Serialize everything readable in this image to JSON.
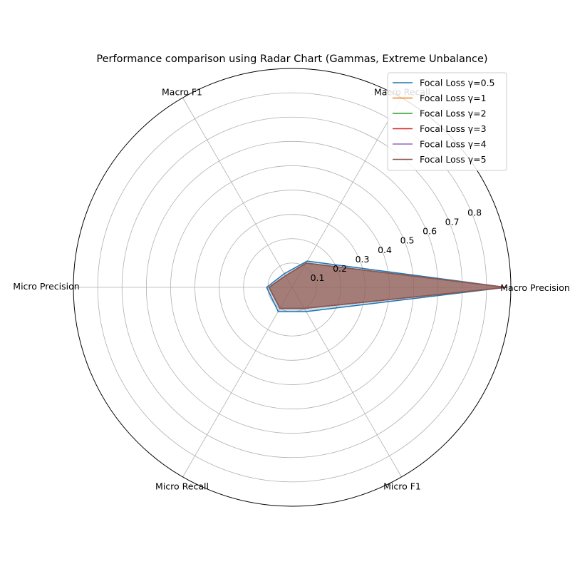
{
  "chart_data": {
    "type": "radar",
    "title": "Performance comparison using Radar Chart (Gammas, Extreme Unbalance)",
    "axes": [
      "Macro Precision",
      "Macro Recall",
      "Macro F1",
      "Micro Precision",
      "Micro Recall",
      "Micro F1"
    ],
    "rlim": [
      0,
      0.9
    ],
    "rticks": [
      0.1,
      0.2,
      0.3,
      0.4,
      0.5,
      0.6,
      0.7,
      0.8
    ],
    "grid": true,
    "legend_position": "top-right",
    "fill_alpha": 0.25,
    "series": [
      {
        "name": "Focal Loss γ=0.5",
        "color": "#1f77b4",
        "values": [
          0.88,
          0.125,
          0.065,
          0.105,
          0.115,
          0.115
        ]
      },
      {
        "name": "Focal Loss γ=1",
        "color": "#ff7f0e",
        "values": [
          0.88,
          0.115,
          0.055,
          0.095,
          0.1,
          0.1
        ]
      },
      {
        "name": "Focal Loss γ=2",
        "color": "#2ca02c",
        "values": [
          0.88,
          0.115,
          0.055,
          0.095,
          0.1,
          0.1
        ]
      },
      {
        "name": "Focal Loss γ=3",
        "color": "#d62728",
        "values": [
          0.88,
          0.115,
          0.055,
          0.095,
          0.1,
          0.1
        ]
      },
      {
        "name": "Focal Loss γ=4",
        "color": "#9467bd",
        "values": [
          0.88,
          0.115,
          0.055,
          0.095,
          0.1,
          0.1
        ]
      },
      {
        "name": "Focal Loss γ=5",
        "color": "#8c564b",
        "values": [
          0.88,
          0.115,
          0.055,
          0.095,
          0.1,
          0.1
        ]
      }
    ]
  }
}
